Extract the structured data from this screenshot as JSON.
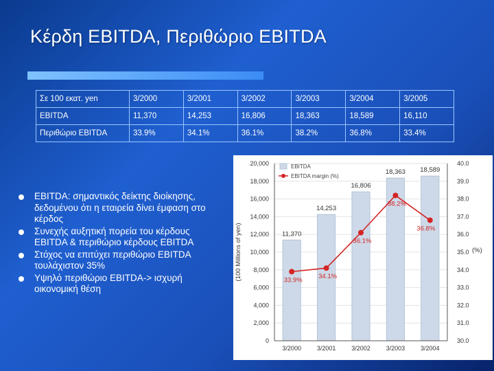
{
  "slide": {
    "title": "Κέρδη EBITDA, Περιθώριο EBITDA"
  },
  "table": {
    "header": [
      "Σε 100 εκατ. yen",
      "3/2000",
      "3/2001",
      "3/2002",
      "3/2003",
      "3/2004",
      "3/2005"
    ],
    "rows": [
      [
        "EBITDA",
        "11,370",
        "14,253",
        "16,806",
        "18,363",
        "18,589",
        "16,110"
      ],
      [
        "Περιθώριο EBITDA",
        "33.9%",
        "34.1%",
        "36.1%",
        "38.2%",
        "36.8%",
        "33.4%"
      ]
    ]
  },
  "bullets": [
    "EBITDA: σημαντικός δείκτης διοίκησης, δεδομένου ότι η εταιρεία δίνει έμφαση στο κέρδος",
    "Συνεχής αυξητική πορεία του κέρδους EBITDA & περιθώριο κέρδους EBITDA",
    "Στόχος να επιτύχει περιθώριο EBITDA τουλάχιστον 35%",
    "Υψηλό περιθώριο EBITDA-> ισχυρή οικονομική θέση"
  ],
  "colors": {
    "bar": "#cdd9e8",
    "bar_edge": "#b4c4d8",
    "line": "#d42424",
    "grid": "#e3e3e3"
  },
  "chart_data": {
    "type": "bar",
    "categories": [
      "3/2000",
      "3/2001",
      "3/2002",
      "3/2003",
      "3/2004"
    ],
    "series": [
      {
        "name": "EBITDA",
        "type": "bar",
        "axis": "left",
        "values": [
          11370,
          14253,
          16806,
          18363,
          18589
        ]
      },
      {
        "name": "EBITDA margin (%)",
        "type": "line",
        "axis": "right",
        "values": [
          33.9,
          34.1,
          36.1,
          38.2,
          36.8
        ]
      }
    ],
    "bar_labels": [
      "11,370",
      "14,253",
      "16,806",
      "18,363",
      "18,589"
    ],
    "line_labels": [
      "33.9%",
      "34.1%",
      "36.1%",
      "38.2%",
      "36.8%"
    ],
    "ylabel": "(100 Millions of yen)",
    "y2label": "(%)",
    "ylim": [
      0,
      20000
    ],
    "y2lim": [
      30,
      40
    ],
    "yticks": [
      0,
      2000,
      4000,
      6000,
      8000,
      10000,
      12000,
      14000,
      16000,
      18000,
      20000
    ],
    "ytick_labels": [
      "0",
      "2,000",
      "4,000",
      "6,000",
      "8,000",
      "10,000",
      "12,000",
      "14,000",
      "16,000",
      "18,000",
      "20,000"
    ],
    "y2ticks": [
      30,
      31,
      32,
      33,
      34,
      35,
      36,
      37,
      38,
      39,
      40
    ],
    "y2tick_labels": [
      "30.0",
      "31.0",
      "32.0",
      "33.0",
      "34.0",
      "35.0",
      "36.0",
      "37.0",
      "38.0",
      "39.0",
      "40.0"
    ],
    "grid": true,
    "legend": "top-left"
  }
}
